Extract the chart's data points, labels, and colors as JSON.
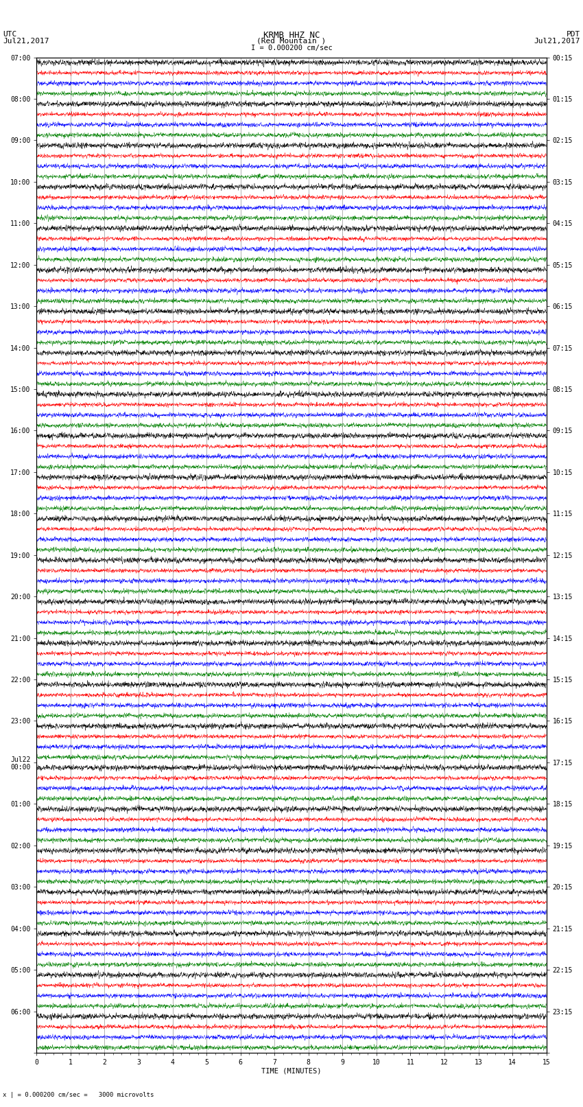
{
  "title_line1": "KRMB HHZ NC",
  "title_line2": "(Red Mountain )",
  "scale_label": "I = 0.000200 cm/sec",
  "left_header_line1": "UTC",
  "left_header_line2": "Jul21,2017",
  "right_header_line1": "PDT",
  "right_header_line2": "Jul21,2017",
  "bottom_note": "x | = 0.000200 cm/sec =   3000 microvolts",
  "xlabel": "TIME (MINUTES)",
  "left_times": [
    "07:00",
    "08:00",
    "09:00",
    "10:00",
    "11:00",
    "12:00",
    "13:00",
    "14:00",
    "15:00",
    "16:00",
    "17:00",
    "18:00",
    "19:00",
    "20:00",
    "21:00",
    "22:00",
    "23:00",
    "Jul22\n00:00",
    "01:00",
    "02:00",
    "03:00",
    "04:00",
    "05:00",
    "06:00"
  ],
  "right_times": [
    "00:15",
    "01:15",
    "02:15",
    "03:15",
    "04:15",
    "05:15",
    "06:15",
    "07:15",
    "08:15",
    "09:15",
    "10:15",
    "11:15",
    "12:15",
    "13:15",
    "14:15",
    "15:15",
    "16:15",
    "17:15",
    "18:15",
    "19:15",
    "20:15",
    "21:15",
    "22:15",
    "23:15"
  ],
  "colors": [
    "black",
    "red",
    "blue",
    "green"
  ],
  "n_hours": 24,
  "n_traces_per_group": 4,
  "minutes": 15,
  "background_color": "white",
  "plot_bg_color": "white",
  "grid_color": "#666666",
  "title_fontsize": 9,
  "label_fontsize": 7.5,
  "tick_fontsize": 7
}
